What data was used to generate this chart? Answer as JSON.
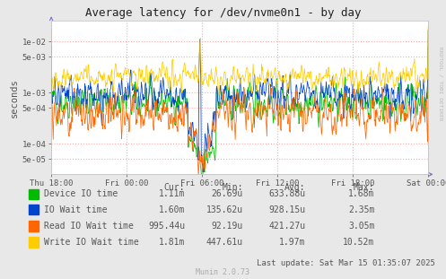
{
  "title": "Average latency for /dev/nvme0n1 - by day",
  "ylabel": "seconds",
  "bg_color": "#e8e8e8",
  "plot_bg_color": "#ffffff",
  "grid_color": "#ffaaaa",
  "x_labels": [
    "Thu 18:00",
    "Fri 00:00",
    "Fri 06:00",
    "Fri 12:00",
    "Fri 18:00",
    "Sat 00:00"
  ],
  "yticks": [
    5e-05,
    0.0001,
    0.0005,
    0.001,
    0.005,
    0.01
  ],
  "ytick_labels": [
    "5e-05",
    "1e-04",
    "5e-04",
    "1e-03",
    "5e-03",
    "1e-02"
  ],
  "ymin": 2.5e-05,
  "ymax": 0.025,
  "legend_items": [
    {
      "label": "Device IO time",
      "color": "#00bb00"
    },
    {
      "label": "IO Wait time",
      "color": "#0044cc"
    },
    {
      "label": "Read IO Wait time",
      "color": "#ff6600"
    },
    {
      "label": "Write IO Wait time",
      "color": "#ffcc00"
    }
  ],
  "table_headers": [
    "Cur:",
    "Min:",
    "Avg:",
    "Max:"
  ],
  "table_rows": [
    [
      "1.11m",
      "26.69u",
      "633.88u",
      "1.68m"
    ],
    [
      "1.60m",
      "135.62u",
      "928.15u",
      "2.35m"
    ],
    [
      "995.44u",
      "92.19u",
      "421.27u",
      "3.05m"
    ],
    [
      "1.81m",
      "447.61u",
      "1.97m",
      "10.52m"
    ]
  ],
  "last_update": "Last update: Sat Mar 15 01:35:07 2025",
  "munin_version": "Munin 2.0.73",
  "rrdtool_text": "RRDTOOL / TOBI OETIKER",
  "font_color": "#555555",
  "arrow_color": "#7777cc"
}
